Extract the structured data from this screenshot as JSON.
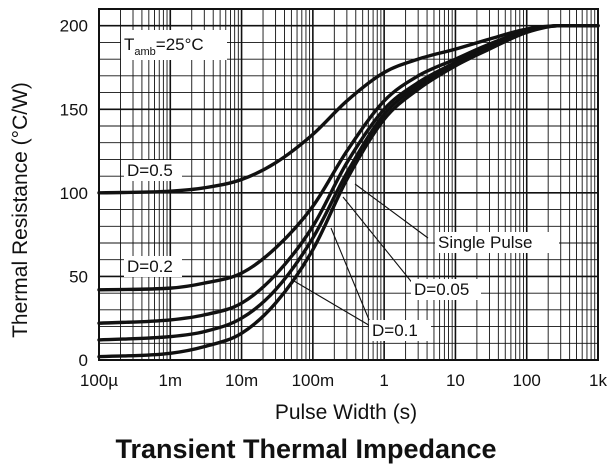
{
  "chart_data": {
    "type": "line",
    "title": "Transient Thermal Impedance",
    "xlabel": "Pulse Width (s)",
    "ylabel": "Thermal Resistance (°C/W)",
    "x_scale": "log",
    "xlim": [
      0.0001,
      1000
    ],
    "ylim": [
      0,
      210
    ],
    "grid": true,
    "x_tick_labels": [
      "100µ",
      "1m",
      "10m",
      "100m",
      "1",
      "10",
      "100",
      "1k"
    ],
    "x_tick_values": [
      0.0001,
      0.001,
      0.01,
      0.1,
      1,
      10,
      100,
      1000
    ],
    "y_tick_values": [
      0,
      50,
      100,
      150,
      200
    ],
    "annotations": {
      "temperature_main": "T",
      "temperature_sub": "amb",
      "temperature_rest": "=25°C",
      "label_d05": "D=0.5",
      "label_d02": "D=0.2",
      "label_single": "Single Pulse",
      "label_d005": "D=0.05",
      "label_d01": "D=0.1"
    },
    "series": [
      {
        "name": "D=0.5",
        "x": [
          0.0001,
          0.001,
          0.003,
          0.01,
          0.03,
          0.1,
          0.3,
          1,
          3,
          10,
          30,
          100,
          300,
          1000
        ],
        "y": [
          100,
          101,
          103,
          108,
          118,
          135,
          155,
          172,
          180,
          186,
          192,
          198,
          200,
          200
        ]
      },
      {
        "name": "D=0.2",
        "x": [
          0.0001,
          0.001,
          0.003,
          0.01,
          0.03,
          0.1,
          0.3,
          1,
          3,
          10,
          30,
          100,
          300,
          1000
        ],
        "y": [
          42,
          43,
          46,
          52,
          67,
          92,
          125,
          155,
          170,
          180,
          189,
          197,
          200,
          200
        ]
      },
      {
        "name": "D=0.1",
        "x": [
          0.0001,
          0.001,
          0.003,
          0.01,
          0.03,
          0.1,
          0.3,
          1,
          3,
          10,
          30,
          100,
          300,
          1000
        ],
        "y": [
          22,
          24,
          27,
          34,
          51,
          80,
          118,
          150,
          166,
          178,
          188,
          197,
          200,
          200
        ]
      },
      {
        "name": "D=0.05",
        "x": [
          0.0001,
          0.001,
          0.003,
          0.01,
          0.03,
          0.1,
          0.3,
          1,
          3,
          10,
          30,
          100,
          300,
          1000
        ],
        "y": [
          12,
          14,
          17,
          25,
          42,
          73,
          112,
          147,
          164,
          177,
          187,
          197,
          200,
          200
        ]
      },
      {
        "name": "Single Pulse",
        "x": [
          0.0001,
          0.001,
          0.003,
          0.01,
          0.03,
          0.1,
          0.3,
          1,
          3,
          10,
          30,
          100,
          300,
          1000
        ],
        "y": [
          2,
          4,
          8,
          16,
          34,
          66,
          108,
          144,
          162,
          176,
          186,
          196,
          200,
          200
        ]
      }
    ]
  }
}
